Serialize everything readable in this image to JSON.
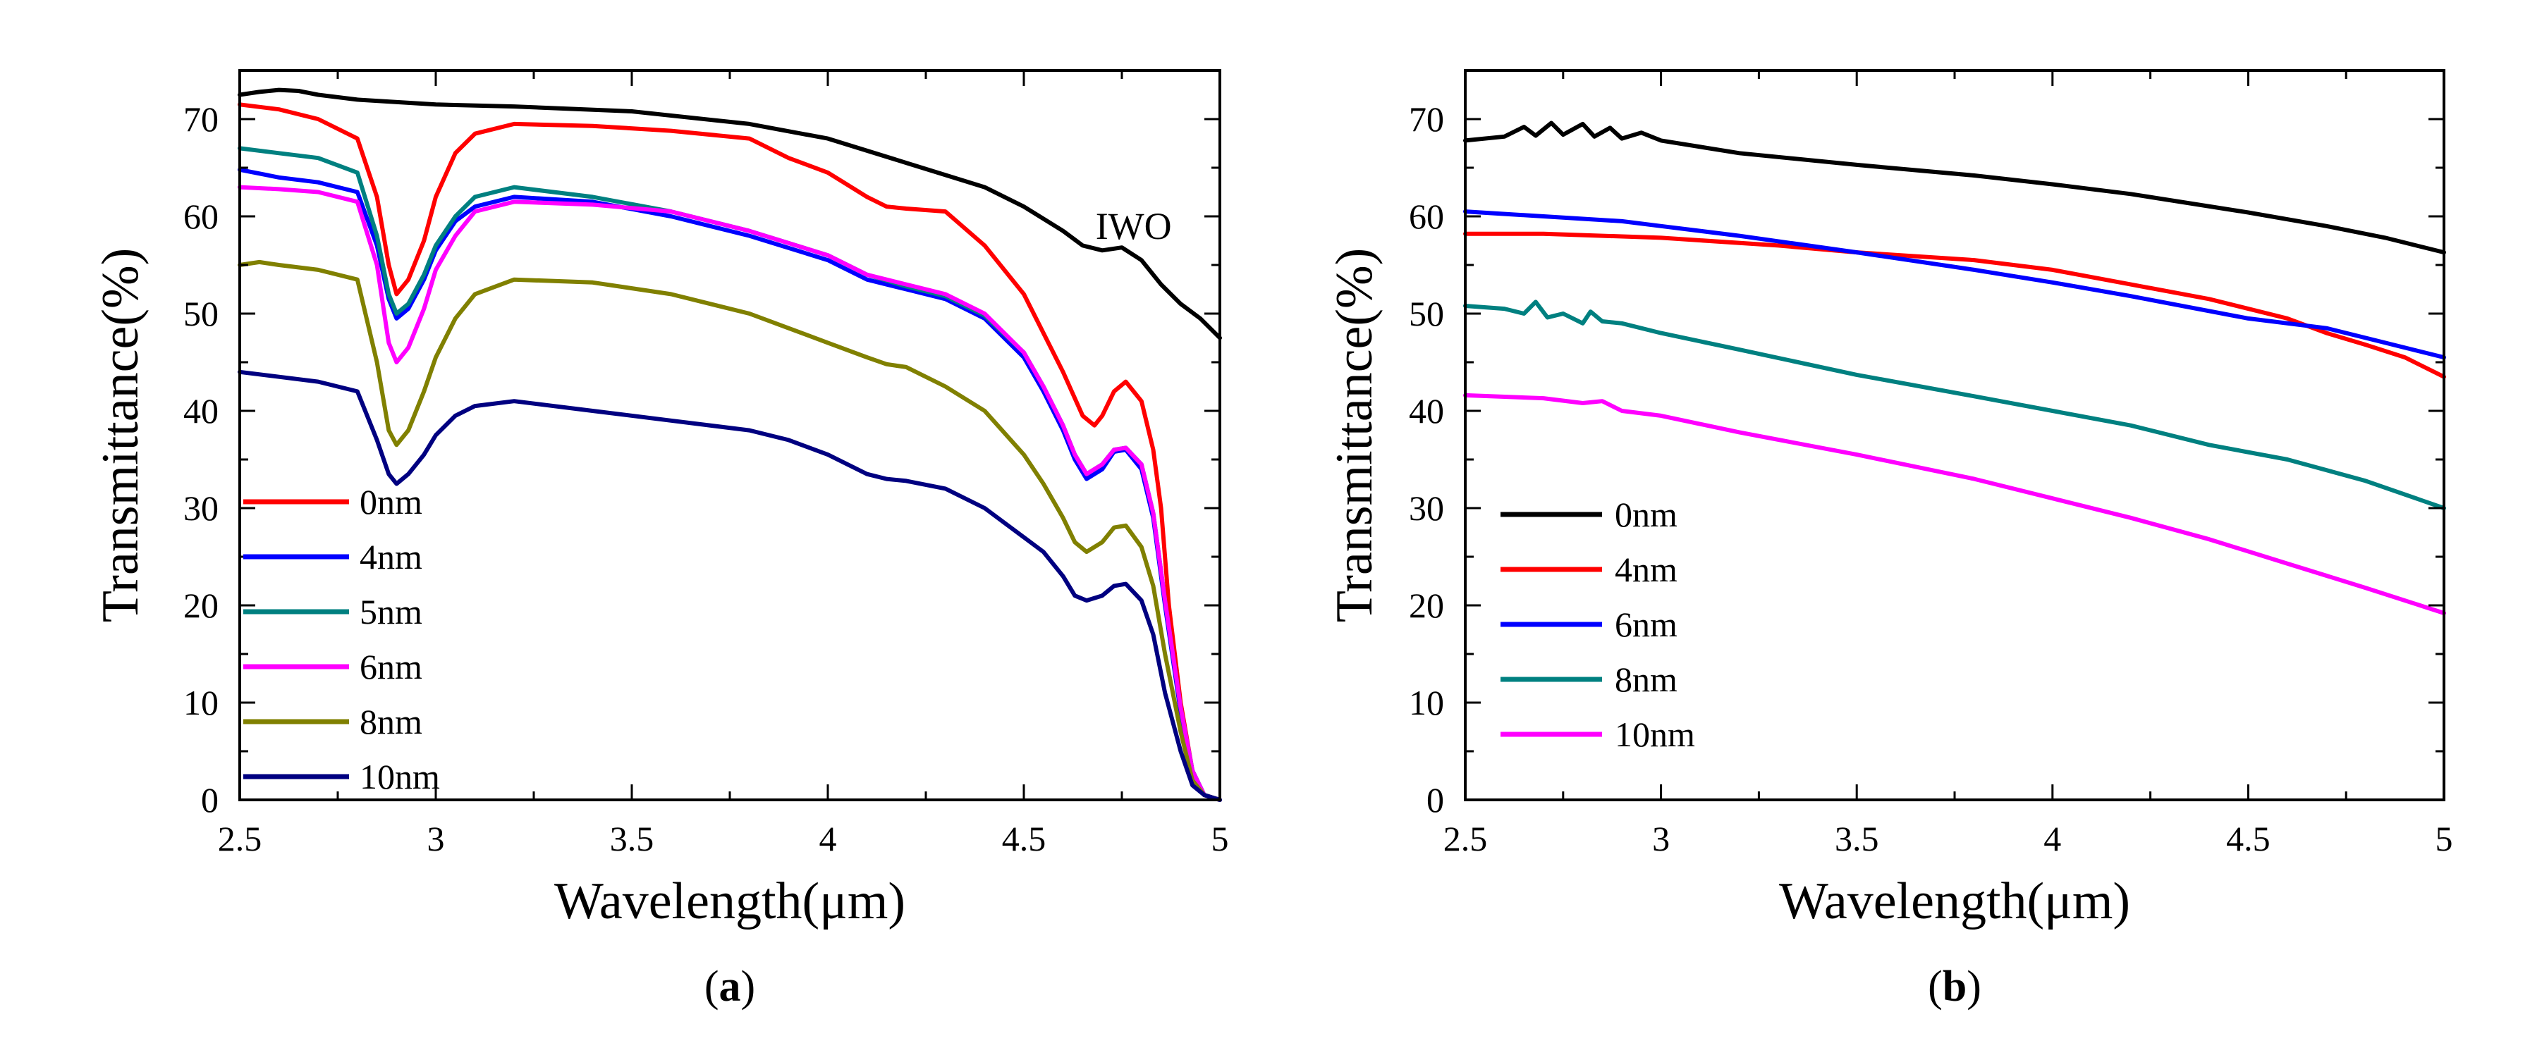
{
  "figure_labels": {
    "a": "a",
    "b": "b"
  },
  "chart_data": [
    {
      "type": "line",
      "panel": "a",
      "xlabel": "Wavelength(μm)",
      "ylabel": "Transmittance(%)",
      "xlim": [
        2.5,
        5.0
      ],
      "ylim": [
        0,
        75
      ],
      "xticks": [
        2.5,
        3,
        3.5,
        4,
        4.5,
        5
      ],
      "xtick_labels": [
        "2.5",
        "3",
        "3.5",
        "4",
        "4.5",
        "5"
      ],
      "yticks": [
        0,
        10,
        20,
        30,
        40,
        50,
        60,
        70
      ],
      "ytick_labels": [
        "0",
        "10",
        "20",
        "30",
        "40",
        "50",
        "60",
        "70"
      ],
      "grid": false,
      "legend_position": "lower-left",
      "annotations": [
        {
          "text": "IWO",
          "x": 4.78,
          "y": 59
        }
      ],
      "series": [
        {
          "name": "IWO",
          "legend": false,
          "color": "#000000",
          "x": [
            2.5,
            2.55,
            2.6,
            2.65,
            2.7,
            2.8,
            3.0,
            3.2,
            3.5,
            3.8,
            4.0,
            4.2,
            4.4,
            4.5,
            4.6,
            4.65,
            4.7,
            4.75,
            4.8,
            4.85,
            4.9,
            4.95,
            5.0
          ],
          "y": [
            72.5,
            72.8,
            73.0,
            72.9,
            72.5,
            72.0,
            71.5,
            71.3,
            70.8,
            69.5,
            68.0,
            65.5,
            63.0,
            61.0,
            58.5,
            57.0,
            56.5,
            56.8,
            55.5,
            53.0,
            51.0,
            49.5,
            47.5
          ]
        },
        {
          "name": "0nm",
          "legend": true,
          "color": "#ff0000",
          "x": [
            2.5,
            2.6,
            2.7,
            2.8,
            2.85,
            2.88,
            2.9,
            2.93,
            2.97,
            3.0,
            3.05,
            3.1,
            3.2,
            3.4,
            3.6,
            3.8,
            3.9,
            4.0,
            4.1,
            4.15,
            4.2,
            4.3,
            4.4,
            4.5,
            4.55,
            4.6,
            4.65,
            4.68,
            4.7,
            4.73,
            4.76,
            4.8,
            4.83,
            4.85,
            4.87,
            4.9,
            4.93,
            4.96,
            5.0
          ],
          "y": [
            71.5,
            71.0,
            70.0,
            68.0,
            62.0,
            55.0,
            52.0,
            53.5,
            57.5,
            62.0,
            66.5,
            68.5,
            69.5,
            69.3,
            68.8,
            68.0,
            66.0,
            64.5,
            62.0,
            61.0,
            60.8,
            60.5,
            57.0,
            52.0,
            48.0,
            44.0,
            39.5,
            38.5,
            39.5,
            42.0,
            43.0,
            41.0,
            36.0,
            30.0,
            20.0,
            10.0,
            3.0,
            0.5,
            0.0
          ]
        },
        {
          "name": "4nm",
          "legend": true,
          "color": "#0000ff",
          "x": [
            2.5,
            2.6,
            2.7,
            2.8,
            2.85,
            2.88,
            2.9,
            2.93,
            2.97,
            3.0,
            3.05,
            3.1,
            3.2,
            3.4,
            3.6,
            3.8,
            4.0,
            4.1,
            4.2,
            4.3,
            4.4,
            4.5,
            4.55,
            4.6,
            4.63,
            4.66,
            4.7,
            4.73,
            4.76,
            4.8,
            4.83,
            4.86,
            4.9,
            4.93,
            4.96,
            5.0
          ],
          "y": [
            64.8,
            64.0,
            63.5,
            62.5,
            57.0,
            51.5,
            49.5,
            50.5,
            53.5,
            56.5,
            59.5,
            61.0,
            62.0,
            61.5,
            60.0,
            58.0,
            55.5,
            53.5,
            52.5,
            51.5,
            49.5,
            45.5,
            42.0,
            38.0,
            35.0,
            33.0,
            34.0,
            35.8,
            36.0,
            34.0,
            29.0,
            20.0,
            9.0,
            3.0,
            0.5,
            0.0
          ]
        },
        {
          "name": "5nm",
          "legend": true,
          "color": "#008080",
          "x": [
            2.5,
            2.6,
            2.7,
            2.8,
            2.85,
            2.88,
            2.9,
            2.93,
            2.97,
            3.0,
            3.05,
            3.1,
            3.2,
            3.4,
            3.6,
            3.8,
            4.0,
            4.1,
            4.2,
            4.3,
            4.4,
            4.5,
            4.55,
            4.6,
            4.63,
            4.66,
            4.7,
            4.73,
            4.76,
            4.8,
            4.83,
            4.86,
            4.9,
            4.93,
            4.96,
            5.0
          ],
          "y": [
            67.0,
            66.5,
            66.0,
            64.5,
            58.0,
            52.0,
            50.0,
            51.0,
            54.0,
            57.0,
            60.0,
            62.0,
            63.0,
            62.0,
            60.5,
            58.5,
            56.0,
            54.0,
            52.8,
            51.8,
            49.8,
            46.0,
            42.5,
            38.5,
            35.5,
            33.5,
            34.5,
            36.0,
            36.2,
            34.5,
            29.5,
            20.5,
            9.5,
            3.0,
            0.5,
            0.0
          ]
        },
        {
          "name": "6nm",
          "legend": true,
          "color": "#ff00ff",
          "x": [
            2.5,
            2.6,
            2.7,
            2.8,
            2.85,
            2.88,
            2.9,
            2.93,
            2.97,
            3.0,
            3.05,
            3.1,
            3.2,
            3.4,
            3.6,
            3.8,
            4.0,
            4.1,
            4.2,
            4.3,
            4.4,
            4.5,
            4.55,
            4.6,
            4.63,
            4.66,
            4.7,
            4.73,
            4.76,
            4.8,
            4.83,
            4.86,
            4.9,
            4.93,
            4.96,
            5.0
          ],
          "y": [
            63.0,
            62.8,
            62.5,
            61.5,
            55.0,
            47.0,
            45.0,
            46.5,
            50.5,
            54.5,
            58.0,
            60.5,
            61.5,
            61.2,
            60.5,
            58.5,
            56.0,
            54.0,
            53.0,
            52.0,
            50.0,
            46.0,
            42.5,
            38.5,
            35.5,
            33.5,
            34.5,
            36.0,
            36.2,
            34.5,
            29.5,
            20.5,
            9.5,
            3.0,
            0.5,
            0.0
          ]
        },
        {
          "name": "8nm",
          "legend": true,
          "color": "#808000",
          "x": [
            2.5,
            2.55,
            2.6,
            2.7,
            2.8,
            2.85,
            2.88,
            2.9,
            2.93,
            2.97,
            3.0,
            3.05,
            3.1,
            3.2,
            3.4,
            3.6,
            3.8,
            3.9,
            4.0,
            4.1,
            4.15,
            4.2,
            4.3,
            4.4,
            4.5,
            4.55,
            4.6,
            4.63,
            4.66,
            4.7,
            4.73,
            4.76,
            4.8,
            4.83,
            4.86,
            4.9,
            4.93,
            4.96,
            5.0
          ],
          "y": [
            55.0,
            55.3,
            55.0,
            54.5,
            53.5,
            45.0,
            38.0,
            36.5,
            38.0,
            42.0,
            45.5,
            49.5,
            52.0,
            53.5,
            53.2,
            52.0,
            50.0,
            48.5,
            47.0,
            45.5,
            44.8,
            44.5,
            42.5,
            40.0,
            35.5,
            32.5,
            29.0,
            26.5,
            25.5,
            26.5,
            28.0,
            28.2,
            26.0,
            22.0,
            15.0,
            7.0,
            2.0,
            0.5,
            0.0
          ]
        },
        {
          "name": "10nm",
          "legend": true,
          "color": "#000080",
          "x": [
            2.5,
            2.6,
            2.7,
            2.8,
            2.85,
            2.88,
            2.9,
            2.93,
            2.97,
            3.0,
            3.05,
            3.1,
            3.2,
            3.4,
            3.6,
            3.8,
            3.9,
            4.0,
            4.1,
            4.15,
            4.2,
            4.3,
            4.4,
            4.5,
            4.55,
            4.6,
            4.63,
            4.66,
            4.7,
            4.73,
            4.76,
            4.8,
            4.83,
            4.86,
            4.9,
            4.93,
            4.96,
            5.0
          ],
          "y": [
            44.0,
            43.5,
            43.0,
            42.0,
            37.0,
            33.5,
            32.5,
            33.5,
            35.5,
            37.5,
            39.5,
            40.5,
            41.0,
            40.0,
            39.0,
            38.0,
            37.0,
            35.5,
            33.5,
            33.0,
            32.8,
            32.0,
            30.0,
            27.0,
            25.5,
            23.0,
            21.0,
            20.5,
            21.0,
            22.0,
            22.2,
            20.5,
            17.0,
            11.0,
            5.0,
            1.5,
            0.5,
            0.0
          ]
        }
      ]
    },
    {
      "type": "line",
      "panel": "b",
      "xlabel": "Wavelength(μm)",
      "ylabel": "Transmittance(%)",
      "xlim": [
        2.5,
        5.0
      ],
      "ylim": [
        0,
        75
      ],
      "xticks": [
        2.5,
        3,
        3.5,
        4,
        4.5,
        5
      ],
      "xtick_labels": [
        "2.5",
        "3",
        "3.5",
        "4",
        "4.5",
        "5"
      ],
      "yticks": [
        0,
        10,
        20,
        30,
        40,
        50,
        60,
        70
      ],
      "ytick_labels": [
        "0",
        "10",
        "20",
        "30",
        "40",
        "50",
        "60",
        "70"
      ],
      "grid": false,
      "legend_position": "lower-left",
      "series": [
        {
          "name": "0nm",
          "legend": true,
          "color": "#000000",
          "x": [
            2.5,
            2.6,
            2.65,
            2.68,
            2.72,
            2.75,
            2.8,
            2.83,
            2.87,
            2.9,
            2.95,
            3.0,
            3.2,
            3.5,
            3.8,
            4.0,
            4.2,
            4.5,
            4.7,
            4.85,
            5.0
          ],
          "y": [
            67.8,
            68.2,
            69.2,
            68.3,
            69.6,
            68.4,
            69.5,
            68.2,
            69.1,
            68.0,
            68.6,
            67.8,
            66.5,
            65.3,
            64.2,
            63.3,
            62.3,
            60.4,
            59.0,
            57.8,
            56.3
          ]
        },
        {
          "name": "4nm",
          "legend": true,
          "color": "#ff0000",
          "x": [
            2.5,
            2.7,
            3.0,
            3.3,
            3.5,
            3.8,
            4.0,
            4.2,
            4.4,
            4.6,
            4.7,
            4.8,
            4.9,
            5.0
          ],
          "y": [
            58.2,
            58.2,
            57.8,
            57.0,
            56.3,
            55.5,
            54.5,
            53.0,
            51.5,
            49.5,
            48.0,
            46.8,
            45.5,
            43.5
          ]
        },
        {
          "name": "6nm",
          "legend": true,
          "color": "#0000ff",
          "x": [
            2.5,
            2.7,
            2.9,
            3.0,
            3.2,
            3.5,
            3.8,
            4.0,
            4.2,
            4.5,
            4.7,
            4.85,
            5.0
          ],
          "y": [
            60.5,
            60.0,
            59.5,
            59.0,
            58.0,
            56.3,
            54.5,
            53.2,
            51.8,
            49.5,
            48.5,
            47.0,
            45.5
          ]
        },
        {
          "name": "8nm",
          "legend": true,
          "color": "#008080",
          "x": [
            2.5,
            2.6,
            2.65,
            2.68,
            2.71,
            2.75,
            2.8,
            2.82,
            2.85,
            2.9,
            3.0,
            3.2,
            3.5,
            3.8,
            4.0,
            4.2,
            4.4,
            4.6,
            4.8,
            5.0
          ],
          "y": [
            50.8,
            50.5,
            50.0,
            51.2,
            49.6,
            50.0,
            49.0,
            50.2,
            49.2,
            49.0,
            48.0,
            46.3,
            43.7,
            41.5,
            40.0,
            38.5,
            36.5,
            35.0,
            32.8,
            30.0
          ]
        },
        {
          "name": "10nm",
          "legend": true,
          "color": "#ff00ff",
          "x": [
            2.5,
            2.7,
            2.8,
            2.85,
            2.9,
            3.0,
            3.2,
            3.5,
            3.8,
            4.0,
            4.2,
            4.4,
            4.6,
            4.8,
            5.0
          ],
          "y": [
            41.6,
            41.3,
            40.8,
            41.0,
            40.0,
            39.5,
            37.8,
            35.5,
            33.0,
            31.0,
            29.0,
            26.8,
            24.3,
            21.8,
            19.2
          ]
        }
      ]
    }
  ]
}
